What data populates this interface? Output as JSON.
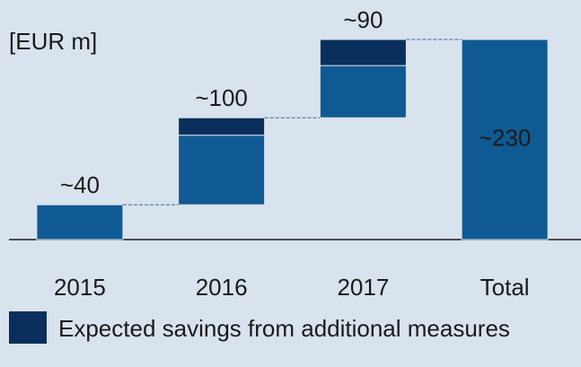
{
  "chart_data": {
    "type": "waterfall",
    "y_label": "[EUR m]",
    "categories": [
      "2015",
      "2016",
      "2017",
      "Total"
    ],
    "series": [
      {
        "color": "#0f5a93",
        "values": [
          40,
          80,
          60,
          230
        ]
      },
      {
        "name": "Expected savings from additional measures",
        "color": "#0a2f5c",
        "values": [
          null,
          20,
          30,
          null
        ]
      }
    ],
    "totals": [
      40,
      100,
      90,
      230
    ],
    "value_labels": [
      "~40",
      "~100",
      "~90",
      "~230"
    ],
    "ylim": [
      0,
      230
    ]
  }
}
